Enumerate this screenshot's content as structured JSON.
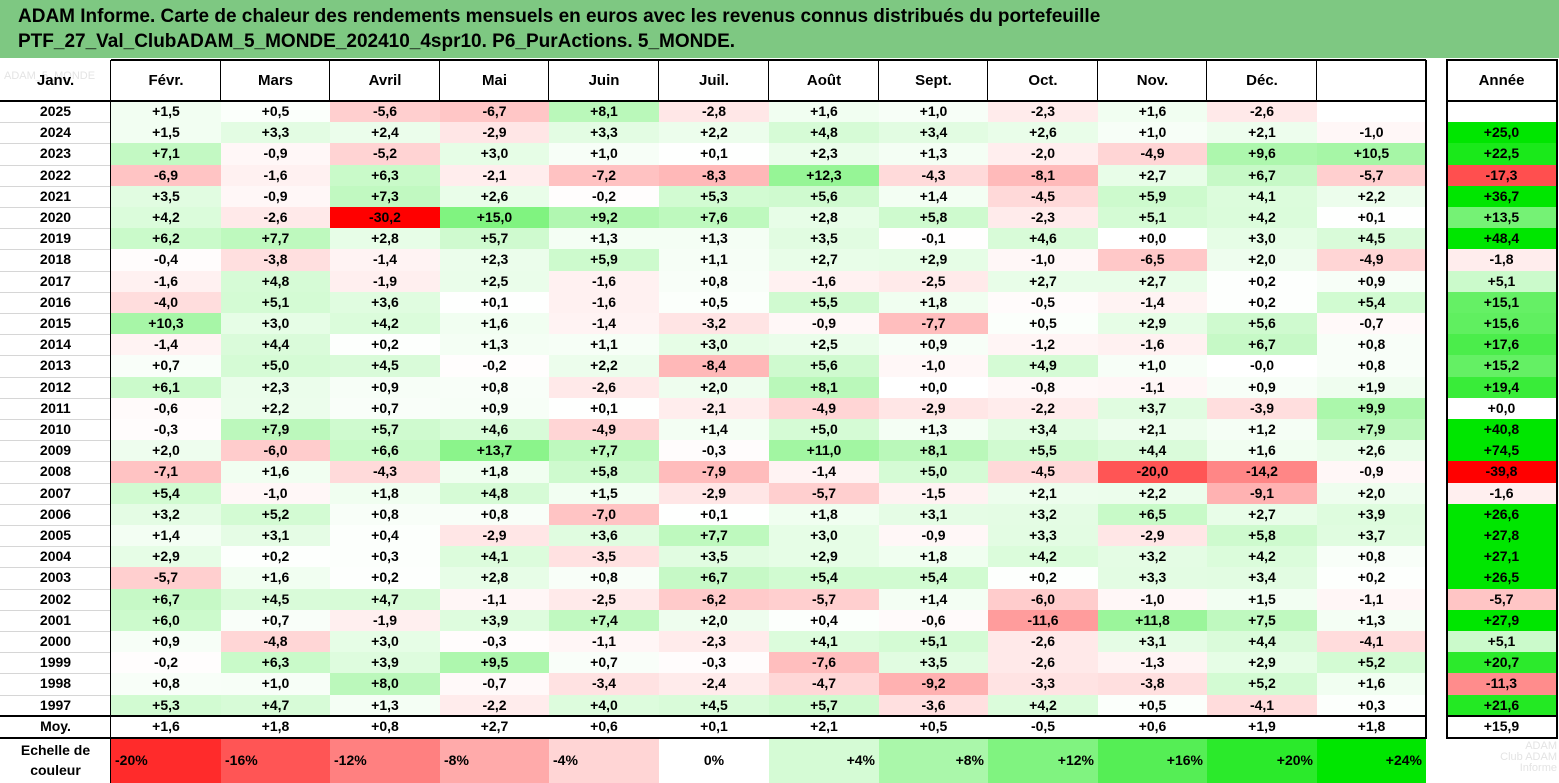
{
  "title": {
    "line1": "ADAM Informe. Carte de chaleur des rendements mensuels en euros avec les revenus connus distribués du portefeuille",
    "line2": "PTF_27_Val_ClubADAM_5_MONDE_202410_4spr10. P6_PurActions. 5_MONDE."
  },
  "chart_data": {
    "type": "heatmap",
    "corner_text": "ADAM_5_MONDE",
    "columns": [
      "Janv.",
      "Févr.",
      "Mars",
      "Avril",
      "Mai",
      "Juin",
      "Juil.",
      "Août",
      "Sept.",
      "Oct.",
      "Nov.",
      "Déc."
    ],
    "annual_header": "Année",
    "rows": [
      {
        "year": "2025",
        "values": [
          "+1,5",
          "+0,5",
          "-5,6",
          "-6,7",
          "+8,1",
          "-2,8",
          "+1,6",
          "+1,0",
          "-2,3",
          "+1,6",
          "-2,6",
          ""
        ],
        "annual": ""
      },
      {
        "year": "2024",
        "values": [
          "+1,5",
          "+3,3",
          "+2,4",
          "-2,9",
          "+3,3",
          "+2,2",
          "+4,8",
          "+3,4",
          "+2,6",
          "+1,0",
          "+2,1",
          "-1,0"
        ],
        "annual": "+25,0"
      },
      {
        "year": "2023",
        "values": [
          "+7,1",
          "-0,9",
          "-5,2",
          "+3,0",
          "+1,0",
          "+0,1",
          "+2,3",
          "+1,3",
          "-2,0",
          "-4,9",
          "+9,6",
          "+10,5"
        ],
        "annual": "+22,5"
      },
      {
        "year": "2022",
        "values": [
          "-6,9",
          "-1,6",
          "+6,3",
          "-2,1",
          "-7,2",
          "-8,3",
          "+12,3",
          "-4,3",
          "-8,1",
          "+2,7",
          "+6,7",
          "-5,7"
        ],
        "annual": "-17,3"
      },
      {
        "year": "2021",
        "values": [
          "+3,5",
          "-0,9",
          "+7,3",
          "+2,6",
          "-0,2",
          "+5,3",
          "+5,6",
          "+1,4",
          "-4,5",
          "+5,9",
          "+4,1",
          "+2,2"
        ],
        "annual": "+36,7"
      },
      {
        "year": "2020",
        "values": [
          "+4,2",
          "-2,6",
          "-30,2",
          "+15,0",
          "+9,2",
          "+7,6",
          "+2,8",
          "+5,8",
          "-2,3",
          "+5,1",
          "+4,2",
          "+0,1"
        ],
        "annual": "+13,5"
      },
      {
        "year": "2019",
        "values": [
          "+6,2",
          "+7,7",
          "+2,8",
          "+5,7",
          "+1,3",
          "+1,3",
          "+3,5",
          "-0,1",
          "+4,6",
          "+0,0",
          "+3,0",
          "+4,5"
        ],
        "annual": "+48,4"
      },
      {
        "year": "2018",
        "values": [
          "-0,4",
          "-3,8",
          "-1,4",
          "+2,3",
          "+5,9",
          "+1,1",
          "+2,7",
          "+2,9",
          "-1,0",
          "-6,5",
          "+2,0",
          "-4,9"
        ],
        "annual": "-1,8"
      },
      {
        "year": "2017",
        "values": [
          "-1,6",
          "+4,8",
          "-1,9",
          "+2,5",
          "-1,6",
          "+0,8",
          "-1,6",
          "-2,5",
          "+2,7",
          "+2,7",
          "+0,2",
          "+0,9"
        ],
        "annual": "+5,1"
      },
      {
        "year": "2016",
        "values": [
          "-4,0",
          "+5,1",
          "+3,6",
          "+0,1",
          "-1,6",
          "+0,5",
          "+5,5",
          "+1,8",
          "-0,5",
          "-1,4",
          "+0,2",
          "+5,4"
        ],
        "annual": "+15,1"
      },
      {
        "year": "2015",
        "values": [
          "+10,3",
          "+3,0",
          "+4,2",
          "+1,6",
          "-1,4",
          "-3,2",
          "-0,9",
          "-7,7",
          "+0,5",
          "+2,9",
          "+5,6",
          "-0,7"
        ],
        "annual": "+15,6"
      },
      {
        "year": "2014",
        "values": [
          "-1,4",
          "+4,4",
          "+0,2",
          "+1,3",
          "+1,1",
          "+3,0",
          "+2,5",
          "+0,9",
          "-1,2",
          "-1,6",
          "+6,7",
          "+0,8"
        ],
        "annual": "+17,6"
      },
      {
        "year": "2013",
        "values": [
          "+0,7",
          "+5,0",
          "+4,5",
          "-0,2",
          "+2,2",
          "-8,4",
          "+5,6",
          "-1,0",
          "+4,9",
          "+1,0",
          "-0,0",
          "+0,8"
        ],
        "annual": "+15,2"
      },
      {
        "year": "2012",
        "values": [
          "+6,1",
          "+2,3",
          "+0,9",
          "+0,8",
          "-2,6",
          "+2,0",
          "+8,1",
          "+0,0",
          "-0,8",
          "-1,1",
          "+0,9",
          "+1,9"
        ],
        "annual": "+19,4"
      },
      {
        "year": "2011",
        "values": [
          "-0,6",
          "+2,2",
          "+0,7",
          "+0,9",
          "+0,1",
          "-2,1",
          "-4,9",
          "-2,9",
          "-2,2",
          "+3,7",
          "-3,9",
          "+9,9"
        ],
        "annual": "+0,0"
      },
      {
        "year": "2010",
        "values": [
          "-0,3",
          "+7,9",
          "+5,7",
          "+4,6",
          "-4,9",
          "+1,4",
          "+5,0",
          "+1,3",
          "+3,4",
          "+2,1",
          "+1,2",
          "+7,9"
        ],
        "annual": "+40,8"
      },
      {
        "year": "2009",
        "values": [
          "+2,0",
          "-6,0",
          "+6,6",
          "+13,7",
          "+7,7",
          "-0,3",
          "+11,0",
          "+8,1",
          "+5,5",
          "+4,4",
          "+1,6",
          "+2,6"
        ],
        "annual": "+74,5"
      },
      {
        "year": "2008",
        "values": [
          "-7,1",
          "+1,6",
          "-4,3",
          "+1,8",
          "+5,8",
          "-7,9",
          "-1,4",
          "+5,0",
          "-4,5",
          "-20,0",
          "-14,2",
          "-0,9"
        ],
        "annual": "-39,8"
      },
      {
        "year": "2007",
        "values": [
          "+5,4",
          "-1,0",
          "+1,8",
          "+4,8",
          "+1,5",
          "-2,9",
          "-5,7",
          "-1,5",
          "+2,1",
          "+2,2",
          "-9,1",
          "+2,0"
        ],
        "annual": "-1,6"
      },
      {
        "year": "2006",
        "values": [
          "+3,2",
          "+5,2",
          "+0,8",
          "+0,8",
          "-7,0",
          "+0,1",
          "+1,8",
          "+3,1",
          "+3,2",
          "+6,5",
          "+2,7",
          "+3,9"
        ],
        "annual": "+26,6"
      },
      {
        "year": "2005",
        "values": [
          "+1,4",
          "+3,1",
          "+0,4",
          "-2,9",
          "+3,6",
          "+7,7",
          "+3,0",
          "-0,9",
          "+3,3",
          "-2,9",
          "+5,8",
          "+3,7"
        ],
        "annual": "+27,8"
      },
      {
        "year": "2004",
        "values": [
          "+2,9",
          "+0,2",
          "+0,3",
          "+4,1",
          "-3,5",
          "+3,5",
          "+2,9",
          "+1,8",
          "+4,2",
          "+3,2",
          "+4,2",
          "+0,8"
        ],
        "annual": "+27,1"
      },
      {
        "year": "2003",
        "values": [
          "-5,7",
          "+1,6",
          "+0,2",
          "+2,8",
          "+0,8",
          "+6,7",
          "+5,4",
          "+5,4",
          "+0,2",
          "+3,3",
          "+3,4",
          "+0,2"
        ],
        "annual": "+26,5"
      },
      {
        "year": "2002",
        "values": [
          "+6,7",
          "+4,5",
          "+4,7",
          "-1,1",
          "-2,5",
          "-6,2",
          "-5,7",
          "+1,4",
          "-6,0",
          "-1,0",
          "+1,5",
          "-1,1"
        ],
        "annual": "-5,7"
      },
      {
        "year": "2001",
        "values": [
          "+6,0",
          "+0,7",
          "-1,9",
          "+3,9",
          "+7,4",
          "+2,0",
          "+0,4",
          "-0,6",
          "-11,6",
          "+11,8",
          "+7,5",
          "+1,3"
        ],
        "annual": "+27,9"
      },
      {
        "year": "2000",
        "values": [
          "+0,9",
          "-4,8",
          "+3,0",
          "-0,3",
          "-1,1",
          "-2,3",
          "+4,1",
          "+5,1",
          "-2,6",
          "+3,1",
          "+4,4",
          "-4,1"
        ],
        "annual": "+5,1"
      },
      {
        "year": "1999",
        "values": [
          "-0,2",
          "+6,3",
          "+3,9",
          "+9,5",
          "+0,7",
          "-0,3",
          "-7,6",
          "+3,5",
          "-2,6",
          "-1,3",
          "+2,9",
          "+5,2"
        ],
        "annual": "+20,7"
      },
      {
        "year": "1998",
        "values": [
          "+0,8",
          "+1,0",
          "+8,0",
          "-0,7",
          "-3,4",
          "-2,4",
          "-4,7",
          "-9,2",
          "-3,3",
          "-3,8",
          "+5,2",
          "+1,6"
        ],
        "annual": "-11,3"
      },
      {
        "year": "1997",
        "values": [
          "+5,3",
          "+4,7",
          "+1,3",
          "-2,2",
          "+4,0",
          "+4,5",
          "+5,7",
          "-3,6",
          "+4,2",
          "+0,5",
          "-4,1",
          "+0,3"
        ],
        "annual": "+21,6"
      }
    ],
    "avg_row": {
      "label": "Moy.",
      "values": [
        "+1,6",
        "+1,8",
        "+0,8",
        "+2,7",
        "+0,6",
        "+0,1",
        "+2,1",
        "+0,5",
        "-0,5",
        "+0,6",
        "+1,9",
        "+1,8"
      ],
      "annual": "+15,9"
    },
    "color_scale": {
      "label_line1": "Echelle de",
      "label_line2": "couleur",
      "steps": [
        "-20%",
        "-16%",
        "-12%",
        "-8%",
        "-4%",
        "0%",
        "+4%",
        "+8%",
        "+12%",
        "+16%",
        "+20%",
        "+24%"
      ],
      "step_values": [
        -20,
        -16,
        -12,
        -8,
        -4,
        0,
        4,
        8,
        12,
        16,
        20,
        24
      ],
      "trailing_ghost_text": [
        "ADAM",
        "Club ADAM",
        "Informe"
      ],
      "negative_color": "#ff0000",
      "neutral_color": "#ffffff",
      "positive_color": "#00e600"
    }
  }
}
